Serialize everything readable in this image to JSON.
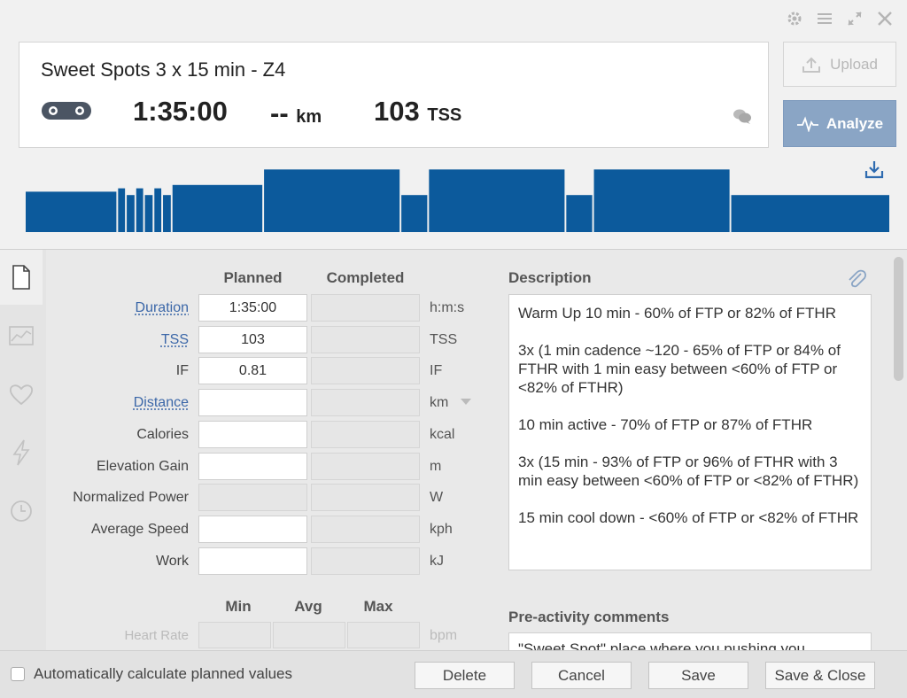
{
  "window": {
    "icons": [
      "gear-icon",
      "menu-icon",
      "expand-icon",
      "close-icon"
    ]
  },
  "summary": {
    "title": "Sweet Spots 3 x 15 min - Z4",
    "sport_icon": "bike-chain-icon",
    "duration": "1:35:00",
    "distance_value": "--",
    "distance_unit": "km",
    "tss_value": "103",
    "tss_unit": "TSS"
  },
  "actions": {
    "upload_label": "Upload",
    "analyze_label": "Analyze"
  },
  "workout_graph": {
    "color": "#0c5a9c",
    "segments": [
      {
        "start": 0.0,
        "end": 0.105,
        "level": 0.6
      },
      {
        "start": 0.107,
        "end": 0.115,
        "level": 0.65
      },
      {
        "start": 0.117,
        "end": 0.126,
        "level": 0.55
      },
      {
        "start": 0.128,
        "end": 0.136,
        "level": 0.65
      },
      {
        "start": 0.138,
        "end": 0.147,
        "level": 0.55
      },
      {
        "start": 0.149,
        "end": 0.157,
        "level": 0.65
      },
      {
        "start": 0.159,
        "end": 0.168,
        "level": 0.55
      },
      {
        "start": 0.17,
        "end": 0.274,
        "level": 0.7
      },
      {
        "start": 0.276,
        "end": 0.433,
        "level": 0.93
      },
      {
        "start": 0.435,
        "end": 0.465,
        "level": 0.55
      },
      {
        "start": 0.467,
        "end": 0.624,
        "level": 0.93
      },
      {
        "start": 0.626,
        "end": 0.656,
        "level": 0.55
      },
      {
        "start": 0.658,
        "end": 0.815,
        "level": 0.93
      },
      {
        "start": 0.817,
        "end": 1.0,
        "level": 0.55
      }
    ]
  },
  "form": {
    "col_planned": "Planned",
    "col_completed": "Completed",
    "rows": [
      {
        "label": "Duration",
        "planned": "1:35:00",
        "unit": "h:m:s"
      },
      {
        "label": "TSS",
        "planned": "103",
        "unit": "TSS"
      },
      {
        "label": "IF",
        "planned": "0.81",
        "unit": "IF"
      },
      {
        "label": "Distance",
        "planned": "",
        "unit": "km"
      },
      {
        "label": "Calories",
        "planned": "",
        "unit": "kcal"
      },
      {
        "label": "Elevation Gain",
        "planned": "",
        "unit": "m"
      },
      {
        "label": "Normalized Power",
        "planned": "",
        "unit": "W"
      },
      {
        "label": "Average Speed",
        "planned": "",
        "unit": "kph"
      },
      {
        "label": "Work",
        "planned": "",
        "unit": "kJ"
      }
    ],
    "hr": {
      "col_min": "Min",
      "col_avg": "Avg",
      "col_max": "Max",
      "label": "Heart Rate",
      "unit": "bpm"
    }
  },
  "description": {
    "heading": "Description",
    "paragraphs": [
      "Warm Up 10 min - 60% of FTP or 82% of FTHR",
      "3x (1 min cadence ~120 - 65% of FTP or 84% of FTHR with 1 min easy between <60% of FTP or <82% of FTHR)",
      "10 min active - 70% of FTP or 87% of FTHR",
      "3x (15 min - 93% of FTP or 96% of FTHR with 3 min easy between <60% of FTP or <82% of FTHR)",
      "15 min cool down - <60% of FTP or <82% of FTHR"
    ]
  },
  "pre_activity": {
    "heading": "Pre-activity comments",
    "text": "\"Sweet Spot\" place where you pushing you"
  },
  "footer": {
    "auto_calc_label": "Automatically calculate planned values",
    "delete_label": "Delete",
    "cancel_label": "Cancel",
    "save_label": "Save",
    "save_close_label": "Save & Close"
  }
}
